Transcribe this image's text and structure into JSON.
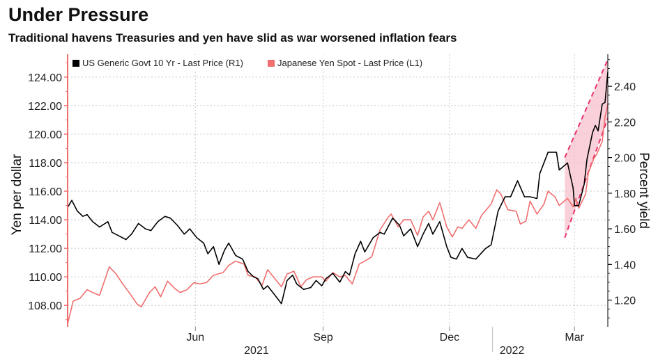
{
  "title": "Under Pressure",
  "subtitle": "Traditional havens Treasuries and yen have slid as war worsened inflation fears",
  "chart_data": {
    "type": "line",
    "ylabel_left": "Yen per dollar",
    "ylabel_right": "Percent yield",
    "ylim_left": [
      106.5,
      125.6
    ],
    "ylim_right": [
      1.05,
      2.58
    ],
    "yticks_left": [
      "108.00",
      "110.00",
      "112.00",
      "114.00",
      "116.00",
      "118.00",
      "120.00",
      "122.00",
      "124.00"
    ],
    "yticks_right": [
      "1.20",
      "1.40",
      "1.60",
      "1.80",
      "2.00",
      "2.20",
      "2.40"
    ],
    "x_start": "2021-03-01",
    "x_end": "2022-03-25",
    "xticks": [
      {
        "date": "2021-06-01",
        "label": "Jun"
      },
      {
        "date": "2021-09-01",
        "label": "Sep"
      },
      {
        "date": "2021-12-01",
        "label": "Dec"
      },
      {
        "date": "2022-03-01",
        "label": "Mar"
      }
    ],
    "year_labels": [
      {
        "date": "2021-07-15",
        "label": "2021"
      },
      {
        "date": "2022-01-15",
        "label": "2022"
      }
    ],
    "legend_position": "top-left",
    "grid": true,
    "series": [
      {
        "name": "US Generic Govt 10 Yr - Last Price (R1)",
        "axis": "right",
        "color": "#000000",
        "points": [
          [
            "2021-03-01",
            1.72
          ],
          [
            "2021-03-04",
            1.76
          ],
          [
            "2021-03-08",
            1.7
          ],
          [
            "2021-03-12",
            1.67
          ],
          [
            "2021-03-15",
            1.68
          ],
          [
            "2021-03-19",
            1.64
          ],
          [
            "2021-03-24",
            1.61
          ],
          [
            "2021-03-30",
            1.64
          ],
          [
            "2021-04-02",
            1.58
          ],
          [
            "2021-04-07",
            1.56
          ],
          [
            "2021-04-12",
            1.54
          ],
          [
            "2021-04-16",
            1.57
          ],
          [
            "2021-04-21",
            1.63
          ],
          [
            "2021-04-26",
            1.6
          ],
          [
            "2021-04-30",
            1.59
          ],
          [
            "2021-05-05",
            1.64
          ],
          [
            "2021-05-10",
            1.67
          ],
          [
            "2021-05-14",
            1.66
          ],
          [
            "2021-05-19",
            1.62
          ],
          [
            "2021-05-24",
            1.57
          ],
          [
            "2021-05-28",
            1.6
          ],
          [
            "2021-06-02",
            1.55
          ],
          [
            "2021-06-07",
            1.52
          ],
          [
            "2021-06-10",
            1.46
          ],
          [
            "2021-06-14",
            1.5
          ],
          [
            "2021-06-18",
            1.4
          ],
          [
            "2021-06-22",
            1.48
          ],
          [
            "2021-06-25",
            1.52
          ],
          [
            "2021-06-30",
            1.45
          ],
          [
            "2021-07-05",
            1.43
          ],
          [
            "2021-07-09",
            1.36
          ],
          [
            "2021-07-13",
            1.33
          ],
          [
            "2021-07-16",
            1.32
          ],
          [
            "2021-07-20",
            1.26
          ],
          [
            "2021-07-23",
            1.28
          ],
          [
            "2021-07-27",
            1.24
          ],
          [
            "2021-08-02",
            1.18
          ],
          [
            "2021-08-06",
            1.31
          ],
          [
            "2021-08-10",
            1.34
          ],
          [
            "2021-08-13",
            1.29
          ],
          [
            "2021-08-18",
            1.26
          ],
          [
            "2021-08-23",
            1.27
          ],
          [
            "2021-08-27",
            1.31
          ],
          [
            "2021-08-31",
            1.28
          ],
          [
            "2021-09-03",
            1.32
          ],
          [
            "2021-09-08",
            1.35
          ],
          [
            "2021-09-13",
            1.3
          ],
          [
            "2021-09-17",
            1.36
          ],
          [
            "2021-09-20",
            1.34
          ],
          [
            "2021-09-24",
            1.46
          ],
          [
            "2021-09-28",
            1.53
          ],
          [
            "2021-10-01",
            1.47
          ],
          [
            "2021-10-07",
            1.55
          ],
          [
            "2021-10-12",
            1.58
          ],
          [
            "2021-10-15",
            1.57
          ],
          [
            "2021-10-21",
            1.66
          ],
          [
            "2021-10-26",
            1.62
          ],
          [
            "2021-10-29",
            1.56
          ],
          [
            "2021-11-03",
            1.6
          ],
          [
            "2021-11-08",
            1.5
          ],
          [
            "2021-11-12",
            1.57
          ],
          [
            "2021-11-16",
            1.63
          ],
          [
            "2021-11-19",
            1.57
          ],
          [
            "2021-11-24",
            1.64
          ],
          [
            "2021-11-29",
            1.5
          ],
          [
            "2021-12-02",
            1.44
          ],
          [
            "2021-12-06",
            1.43
          ],
          [
            "2021-12-10",
            1.49
          ],
          [
            "2021-12-14",
            1.44
          ],
          [
            "2021-12-20",
            1.43
          ],
          [
            "2021-12-27",
            1.49
          ],
          [
            "2021-12-31",
            1.51
          ],
          [
            "2022-01-05",
            1.7
          ],
          [
            "2022-01-10",
            1.78
          ],
          [
            "2022-01-14",
            1.78
          ],
          [
            "2022-01-19",
            1.87
          ],
          [
            "2022-01-24",
            1.78
          ],
          [
            "2022-01-28",
            1.78
          ],
          [
            "2022-02-02",
            1.77
          ],
          [
            "2022-02-04",
            1.91
          ],
          [
            "2022-02-10",
            2.03
          ],
          [
            "2022-02-16",
            2.03
          ],
          [
            "2022-02-18",
            1.93
          ],
          [
            "2022-02-24",
            1.97
          ],
          [
            "2022-02-28",
            1.83
          ],
          [
            "2022-03-01",
            1.73
          ],
          [
            "2022-03-04",
            1.73
          ],
          [
            "2022-03-08",
            1.85
          ],
          [
            "2022-03-10",
            1.99
          ],
          [
            "2022-03-14",
            2.14
          ],
          [
            "2022-03-16",
            2.18
          ],
          [
            "2022-03-18",
            2.15
          ],
          [
            "2022-03-21",
            2.3
          ],
          [
            "2022-03-23",
            2.31
          ],
          [
            "2022-03-25",
            2.48
          ]
        ]
      },
      {
        "name": "Japanese Yen Spot - Last Price (L1)",
        "axis": "left",
        "color": "#f06e6e",
        "points": [
          [
            "2021-03-01",
            106.7
          ],
          [
            "2021-03-05",
            108.3
          ],
          [
            "2021-03-10",
            108.5
          ],
          [
            "2021-03-15",
            109.1
          ],
          [
            "2021-03-19",
            108.9
          ],
          [
            "2021-03-24",
            108.7
          ],
          [
            "2021-03-31",
            110.7
          ],
          [
            "2021-04-05",
            110.2
          ],
          [
            "2021-04-09",
            109.6
          ],
          [
            "2021-04-15",
            108.8
          ],
          [
            "2021-04-20",
            108.1
          ],
          [
            "2021-04-23",
            107.9
          ],
          [
            "2021-04-29",
            108.9
          ],
          [
            "2021-05-03",
            109.3
          ],
          [
            "2021-05-07",
            108.6
          ],
          [
            "2021-05-12",
            109.7
          ],
          [
            "2021-05-17",
            109.2
          ],
          [
            "2021-05-21",
            108.9
          ],
          [
            "2021-05-26",
            109.1
          ],
          [
            "2021-05-31",
            109.6
          ],
          [
            "2021-06-04",
            109.5
          ],
          [
            "2021-06-09",
            109.6
          ],
          [
            "2021-06-14",
            110.1
          ],
          [
            "2021-06-17",
            110.2
          ],
          [
            "2021-06-21",
            110.3
          ],
          [
            "2021-06-25",
            110.8
          ],
          [
            "2021-06-30",
            111.1
          ],
          [
            "2021-07-06",
            110.9
          ],
          [
            "2021-07-09",
            110.1
          ],
          [
            "2021-07-14",
            110.0
          ],
          [
            "2021-07-19",
            109.4
          ],
          [
            "2021-07-23",
            110.5
          ],
          [
            "2021-07-28",
            109.9
          ],
          [
            "2021-08-02",
            109.3
          ],
          [
            "2021-08-06",
            110.2
          ],
          [
            "2021-08-11",
            110.4
          ],
          [
            "2021-08-16",
            109.3
          ],
          [
            "2021-08-20",
            109.8
          ],
          [
            "2021-08-25",
            110.0
          ],
          [
            "2021-08-31",
            110.0
          ],
          [
            "2021-09-03",
            109.7
          ],
          [
            "2021-09-08",
            110.3
          ],
          [
            "2021-09-13",
            110.0
          ],
          [
            "2021-09-17",
            110.1
          ],
          [
            "2021-09-22",
            109.5
          ],
          [
            "2021-09-27",
            110.9
          ],
          [
            "2021-10-01",
            111.1
          ],
          [
            "2021-10-06",
            111.4
          ],
          [
            "2021-10-12",
            113.3
          ],
          [
            "2021-10-18",
            114.2
          ],
          [
            "2021-10-20",
            114.4
          ],
          [
            "2021-10-25",
            113.5
          ],
          [
            "2021-10-29",
            114.0
          ],
          [
            "2021-11-03",
            114.0
          ],
          [
            "2021-11-08",
            112.9
          ],
          [
            "2021-11-12",
            114.2
          ],
          [
            "2021-11-16",
            114.6
          ],
          [
            "2021-11-19",
            114.0
          ],
          [
            "2021-11-24",
            115.2
          ],
          [
            "2021-11-29",
            113.5
          ],
          [
            "2021-12-03",
            112.8
          ],
          [
            "2021-12-07",
            113.5
          ],
          [
            "2021-12-10",
            113.4
          ],
          [
            "2021-12-15",
            114.0
          ],
          [
            "2021-12-20",
            113.4
          ],
          [
            "2021-12-24",
            114.3
          ],
          [
            "2021-12-31",
            115.1
          ],
          [
            "2022-01-04",
            116.1
          ],
          [
            "2022-01-07",
            115.8
          ],
          [
            "2022-01-12",
            114.7
          ],
          [
            "2022-01-18",
            114.6
          ],
          [
            "2022-01-21",
            113.7
          ],
          [
            "2022-01-25",
            113.9
          ],
          [
            "2022-01-28",
            115.3
          ],
          [
            "2022-02-02",
            114.4
          ],
          [
            "2022-02-07",
            115.1
          ],
          [
            "2022-02-10",
            116.0
          ],
          [
            "2022-02-15",
            115.6
          ],
          [
            "2022-02-18",
            115.0
          ],
          [
            "2022-02-24",
            115.5
          ],
          [
            "2022-02-28",
            114.9
          ],
          [
            "2022-03-02",
            115.5
          ],
          [
            "2022-03-04",
            114.8
          ],
          [
            "2022-03-09",
            115.8
          ],
          [
            "2022-03-11",
            117.3
          ],
          [
            "2022-03-15",
            118.3
          ],
          [
            "2022-03-17",
            118.6
          ],
          [
            "2022-03-21",
            119.5
          ],
          [
            "2022-03-23",
            121.2
          ],
          [
            "2022-03-25",
            122.1
          ]
        ]
      }
    ],
    "channel": {
      "upper": [
        [
          "2022-02-22",
          2.0
        ],
        [
          "2022-03-25",
          2.55
        ]
      ],
      "lower": [
        [
          "2022-02-22",
          1.55
        ],
        [
          "2022-03-25",
          2.22
        ]
      ],
      "axis": "right",
      "color": "#e8336b"
    }
  }
}
